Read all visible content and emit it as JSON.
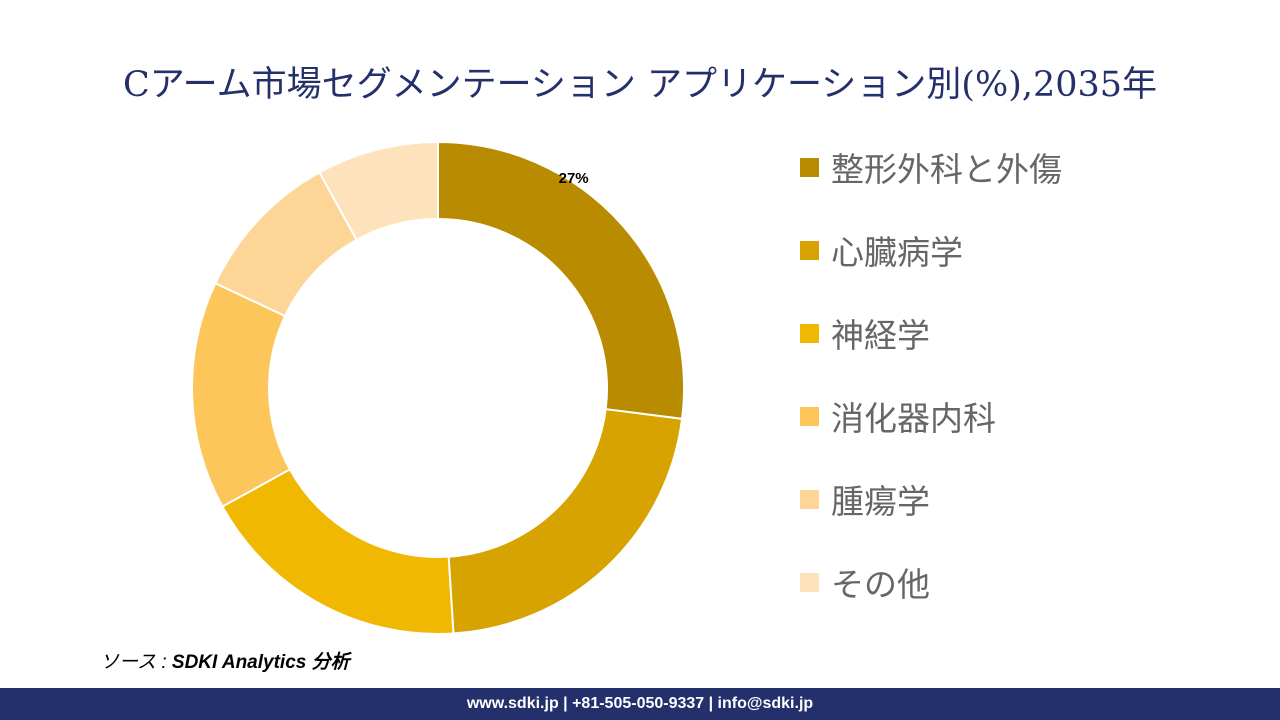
{
  "title": "Cアーム市場セグメンテーション アプリケーション別(%),2035年",
  "chart_data": {
    "type": "donut",
    "title": "Cアーム市場セグメンテーション アプリケーション別(%),2035年",
    "categories": [
      "整形外科と外傷",
      "心臓病学",
      "神経学",
      "消化器内科",
      "腫瘍学",
      "その他"
    ],
    "values": [
      27,
      22,
      18,
      15,
      10,
      8
    ],
    "data_labels": [
      "27%",
      "",
      "",
      "",
      "",
      ""
    ],
    "colors": [
      "#B98B00",
      "#D7A300",
      "#F0B800",
      "#FCC65B",
      "#FDD596",
      "#FEE2BC"
    ],
    "legend_position": "right"
  },
  "source": {
    "prefix": "ソース : ",
    "text": "SDKI Analytics 分析"
  },
  "footer": "www.sdki.jp | +81-505-050-9337 | info@sdki.jp"
}
